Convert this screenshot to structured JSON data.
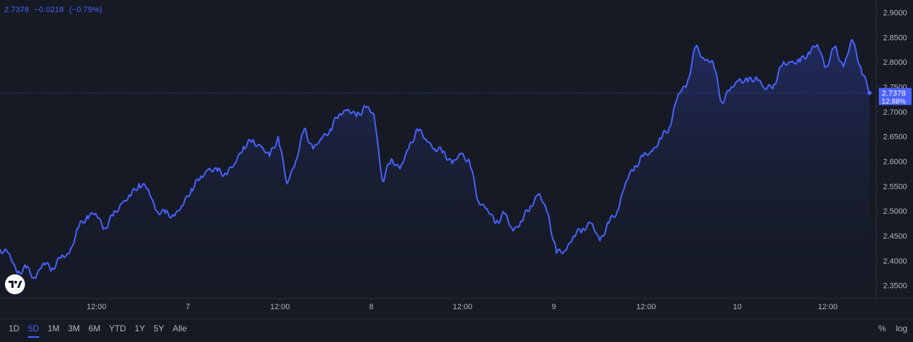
{
  "header": {
    "last": "2.7378",
    "change": "−0.0218",
    "change_pct": "(−0.79%)"
  },
  "colors": {
    "background": "#161a25",
    "line": "#4a62ff",
    "axis_text": "#b2b5be",
    "grid": "#2a2e39"
  },
  "chart_data": {
    "type": "area",
    "x_tick_labels": [
      "12:00",
      "7",
      "12:00",
      "8",
      "12:00",
      "9",
      "12:00",
      "10",
      "12:00"
    ],
    "y_tick_labels": [
      "2.9000",
      "2.8500",
      "2.8000",
      "2.7500",
      "2.7000",
      "2.6500",
      "2.6000",
      "2.5500",
      "2.5000",
      "2.4500",
      "2.4000",
      "2.3500"
    ],
    "ylim": [
      2.325,
      2.925
    ],
    "last_value": 2.7378,
    "last_label": "2.7378",
    "last_pct_label": "12.88%",
    "x_index_range": [
      0,
      100
    ],
    "x_ticks": [
      11.1,
      21.6,
      32.2,
      42.7,
      53.2,
      63.7,
      74.3,
      84.8,
      95.2
    ],
    "points": [
      [
        0,
        2.423
      ],
      [
        1,
        2.415
      ],
      [
        2,
        2.375
      ],
      [
        3,
        2.385
      ],
      [
        4,
        2.365
      ],
      [
        5,
        2.395
      ],
      [
        6,
        2.385
      ],
      [
        7,
        2.405
      ],
      [
        8,
        2.415
      ],
      [
        9,
        2.465
      ],
      [
        10,
        2.49
      ],
      [
        11,
        2.495
      ],
      [
        12,
        2.465
      ],
      [
        13,
        2.49
      ],
      [
        14,
        2.515
      ],
      [
        15,
        2.53
      ],
      [
        16,
        2.555
      ],
      [
        17,
        2.545
      ],
      [
        18,
        2.5
      ],
      [
        19,
        2.495
      ],
      [
        20,
        2.49
      ],
      [
        21,
        2.51
      ],
      [
        22,
        2.545
      ],
      [
        23,
        2.565
      ],
      [
        24,
        2.585
      ],
      [
        25,
        2.58
      ],
      [
        26,
        2.575
      ],
      [
        27,
        2.595
      ],
      [
        28,
        2.63
      ],
      [
        29,
        2.64
      ],
      [
        30,
        2.63
      ],
      [
        31,
        2.61
      ],
      [
        32,
        2.65
      ],
      [
        33,
        2.555
      ],
      [
        34,
        2.6
      ],
      [
        35,
        2.665
      ],
      [
        36,
        2.625
      ],
      [
        37,
        2.645
      ],
      [
        38,
        2.665
      ],
      [
        39,
        2.695
      ],
      [
        40,
        2.705
      ],
      [
        41,
        2.69
      ],
      [
        42,
        2.71
      ],
      [
        43,
        2.695
      ],
      [
        44,
        2.56
      ],
      [
        45,
        2.605
      ],
      [
        46,
        2.585
      ],
      [
        47,
        2.625
      ],
      [
        48,
        2.665
      ],
      [
        49,
        2.645
      ],
      [
        50,
        2.625
      ],
      [
        51,
        2.62
      ],
      [
        52,
        2.595
      ],
      [
        53,
        2.615
      ],
      [
        54,
        2.6
      ],
      [
        55,
        2.52
      ],
      [
        56,
        2.505
      ],
      [
        57,
        2.475
      ],
      [
        58,
        2.495
      ],
      [
        59,
        2.46
      ],
      [
        60,
        2.48
      ],
      [
        61,
        2.51
      ],
      [
        62,
        2.535
      ],
      [
        63,
        2.495
      ],
      [
        64,
        2.415
      ],
      [
        65,
        2.42
      ],
      [
        66,
        2.45
      ],
      [
        67,
        2.465
      ],
      [
        68,
        2.475
      ],
      [
        69,
        2.44
      ],
      [
        70,
        2.475
      ],
      [
        71,
        2.5
      ],
      [
        72,
        2.56
      ],
      [
        73,
        2.59
      ],
      [
        74,
        2.61
      ],
      [
        75,
        2.62
      ],
      [
        76,
        2.645
      ],
      [
        77,
        2.67
      ],
      [
        78,
        2.735
      ],
      [
        79,
        2.755
      ],
      [
        80,
        2.83
      ],
      [
        81,
        2.805
      ],
      [
        82,
        2.8
      ],
      [
        83,
        2.72
      ],
      [
        84,
        2.745
      ],
      [
        85,
        2.765
      ],
      [
        86,
        2.76
      ],
      [
        87,
        2.77
      ],
      [
        88,
        2.745
      ],
      [
        89,
        2.755
      ],
      [
        90,
        2.795
      ],
      [
        91,
        2.8
      ],
      [
        92,
        2.8
      ],
      [
        93,
        2.82
      ],
      [
        94,
        2.835
      ],
      [
        95,
        2.79
      ],
      [
        96,
        2.83
      ],
      [
        97,
        2.79
      ],
      [
        98,
        2.845
      ],
      [
        99,
        2.79
      ],
      [
        100,
        2.7378
      ]
    ]
  },
  "toolbar": {
    "ranges": [
      "1D",
      "5D",
      "1M",
      "3M",
      "6M",
      "YTD",
      "1Y",
      "5Y",
      "Alle"
    ],
    "active": "5D",
    "percent_label": "%",
    "log_label": "log"
  },
  "logo_text": "TV"
}
